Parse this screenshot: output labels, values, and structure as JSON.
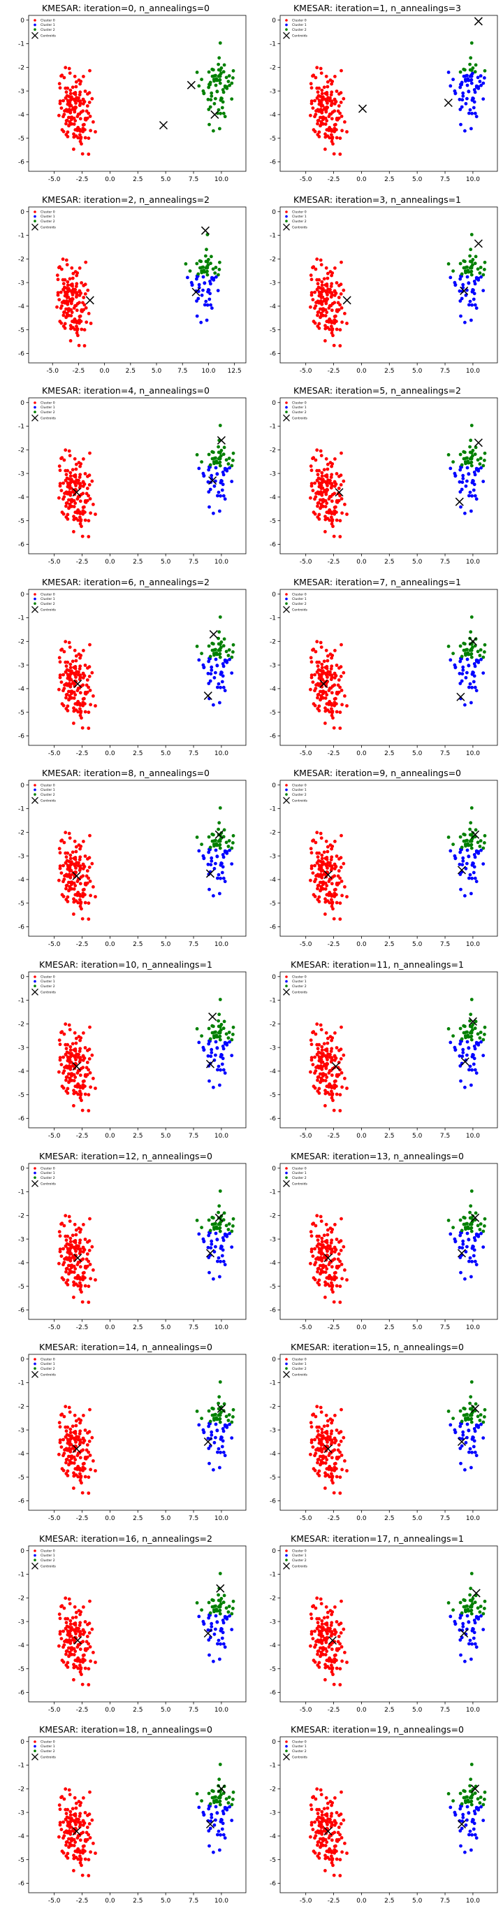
{
  "colors": {
    "cluster0": "#ff0000",
    "cluster1": "#0000ff",
    "cluster2": "#008000",
    "centroid": "#000000",
    "axis": "#000000"
  },
  "legend": [
    "Cluster 0",
    "Cluster 1",
    "Cluster 2",
    "Centroids"
  ],
  "chart_data": [
    {
      "type": "scatter",
      "title": "KMESAR: iteration=0, n_annealings=0",
      "xticks": [
        "-5.0",
        "-2.5",
        "0.0",
        "2.5",
        "5.0",
        "7.5",
        "10.0"
      ],
      "xtick_values": [
        -5,
        -2.5,
        0,
        2.5,
        5,
        7.5,
        10
      ],
      "xlim": [
        -7.3,
        12.2
      ],
      "yticks": [
        "0",
        "-1",
        "-2",
        "-3",
        "-4",
        "-5",
        "-6"
      ],
      "ylim": [
        -6.4,
        0.2
      ],
      "centroids": [
        [
          7.3,
          -2.75
        ],
        [
          9.4,
          -4.0
        ],
        [
          4.8,
          -4.45
        ]
      ],
      "assign_mode": "iter0"
    },
    {
      "type": "scatter",
      "title": "KMESAR: iteration=1, n_annealings=3",
      "xticks": [
        "-5.0",
        "-2.5",
        "0.0",
        "2.5",
        "5.0",
        "7.5",
        "10.0"
      ],
      "xtick_values": [
        -5,
        -2.5,
        0,
        2.5,
        5,
        7.5,
        10
      ],
      "xlim": [
        -7.3,
        12.2
      ],
      "yticks": [
        "0",
        "-1",
        "-2",
        "-3",
        "-4",
        "-5",
        "-6"
      ],
      "ylim": [
        -6.4,
        0.2
      ],
      "centroids": [
        [
          10.5,
          -0.05
        ],
        [
          0.1,
          -3.75
        ],
        [
          7.8,
          -3.5
        ]
      ],
      "assign_mode": "iter1"
    },
    {
      "type": "scatter",
      "title": "KMESAR: iteration=2, n_annealings=2",
      "xticks": [
        "-5.0",
        "-2.5",
        "0.0",
        "2.5",
        "5.0",
        "7.5",
        "10.0",
        "12.5"
      ],
      "xtick_values": [
        -5,
        -2.5,
        0,
        2.5,
        5,
        7.5,
        10,
        12.5
      ],
      "xlim": [
        -7.3,
        13.6
      ],
      "yticks": [
        "0",
        "-1",
        "-2",
        "-3",
        "-4",
        "-5",
        "-6"
      ],
      "ylim": [
        -6.4,
        0.2
      ],
      "centroids": [
        [
          9.7,
          -0.8
        ],
        [
          -1.4,
          -3.75
        ],
        [
          8.8,
          -3.4
        ]
      ],
      "assign_mode": "split"
    },
    {
      "type": "scatter",
      "title": "KMESAR: iteration=3, n_annealings=1",
      "xticks": [
        "-5.0",
        "-2.5",
        "0.0",
        "2.5",
        "5.0",
        "7.5",
        "10.0"
      ],
      "xtick_values": [
        -5,
        -2.5,
        0,
        2.5,
        5,
        7.5,
        10
      ],
      "xlim": [
        -7.3,
        12.2
      ],
      "yticks": [
        "0",
        "-1",
        "-2",
        "-3",
        "-4",
        "-5",
        "-6"
      ],
      "ylim": [
        -6.4,
        0.2
      ],
      "centroids": [
        [
          10.5,
          -1.35
        ],
        [
          -1.3,
          -3.75
        ],
        [
          9.2,
          -3.35
        ]
      ],
      "assign_mode": "split"
    },
    {
      "type": "scatter",
      "title": "KMESAR: iteration=4, n_annealings=0",
      "xticks": [
        "-5.0",
        "-2.5",
        "0.0",
        "2.5",
        "5.0",
        "7.5",
        "10.0"
      ],
      "xtick_values": [
        -5,
        -2.5,
        0,
        2.5,
        5,
        7.5,
        10
      ],
      "xlim": [
        -7.3,
        12.2
      ],
      "yticks": [
        "0",
        "-1",
        "-2",
        "-3",
        "-4",
        "-5",
        "-6"
      ],
      "ylim": [
        -6.4,
        0.2
      ],
      "centroids": [
        [
          10.0,
          -1.6
        ],
        [
          -3.0,
          -3.8
        ],
        [
          9.2,
          -3.3
        ]
      ],
      "assign_mode": "split"
    },
    {
      "type": "scatter",
      "title": "KMESAR: iteration=5, n_annealings=2",
      "xticks": [
        "-5.0",
        "-2.5",
        "0.0",
        "2.5",
        "5.0",
        "7.5",
        "10.0"
      ],
      "xtick_values": [
        -5,
        -2.5,
        0,
        2.5,
        5,
        7.5,
        10
      ],
      "xlim": [
        -7.3,
        12.2
      ],
      "yticks": [
        "0",
        "-1",
        "-2",
        "-3",
        "-4",
        "-5",
        "-6"
      ],
      "ylim": [
        -6.4,
        0.2
      ],
      "centroids": [
        [
          10.5,
          -1.7
        ],
        [
          -2.0,
          -3.8
        ],
        [
          8.8,
          -4.2
        ]
      ],
      "assign_mode": "split"
    },
    {
      "type": "scatter",
      "title": "KMESAR: iteration=6, n_annealings=2",
      "xticks": [
        "-5.0",
        "-2.5",
        "0.0",
        "2.5",
        "5.0",
        "7.5",
        "10.0"
      ],
      "xtick_values": [
        -5,
        -2.5,
        0,
        2.5,
        5,
        7.5,
        10
      ],
      "xlim": [
        -7.3,
        12.2
      ],
      "yticks": [
        "0",
        "-1",
        "-2",
        "-3",
        "-4",
        "-5",
        "-6"
      ],
      "ylim": [
        -6.4,
        0.2
      ],
      "centroids": [
        [
          9.3,
          -1.7
        ],
        [
          -2.9,
          -3.8
        ],
        [
          8.8,
          -4.3
        ]
      ],
      "assign_mode": "split"
    },
    {
      "type": "scatter",
      "title": "KMESAR: iteration=7, n_annealings=1",
      "xticks": [
        "-5.0",
        "-2.5",
        "0.0",
        "2.5",
        "5.0",
        "7.5",
        "10.0"
      ],
      "xtick_values": [
        -5,
        -2.5,
        0,
        2.5,
        5,
        7.5,
        10
      ],
      "xlim": [
        -7.3,
        12.2
      ],
      "yticks": [
        "0",
        "-1",
        "-2",
        "-3",
        "-4",
        "-5",
        "-6"
      ],
      "ylim": [
        -6.4,
        0.2
      ],
      "centroids": [
        [
          10.0,
          -2.0
        ],
        [
          -3.4,
          -3.8
        ],
        [
          8.9,
          -4.35
        ]
      ],
      "assign_mode": "split"
    },
    {
      "type": "scatter",
      "title": "KMESAR: iteration=8, n_annealings=0",
      "xticks": [
        "-5.0",
        "-2.5",
        "0.0",
        "2.5",
        "5.0",
        "7.5",
        "10.0"
      ],
      "xtick_values": [
        -5,
        -2.5,
        0,
        2.5,
        5,
        7.5,
        10
      ],
      "xlim": [
        -7.3,
        12.2
      ],
      "yticks": [
        "0",
        "-1",
        "-2",
        "-3",
        "-4",
        "-5",
        "-6"
      ],
      "ylim": [
        -6.4,
        0.2
      ],
      "centroids": [
        [
          9.8,
          -2.1
        ],
        [
          -3.0,
          -3.85
        ],
        [
          9.0,
          -3.75
        ]
      ],
      "assign_mode": "split"
    },
    {
      "type": "scatter",
      "title": "KMESAR: iteration=9, n_annealings=0",
      "xticks": [
        "-5.0",
        "-2.5",
        "0.0",
        "2.5",
        "5.0",
        "7.5",
        "10.0"
      ],
      "xtick_values": [
        -5,
        -2.5,
        0,
        2.5,
        5,
        7.5,
        10
      ],
      "xlim": [
        -7.3,
        12.2
      ],
      "yticks": [
        "0",
        "-1",
        "-2",
        "-3",
        "-4",
        "-5",
        "-6"
      ],
      "ylim": [
        -6.4,
        0.2
      ],
      "centroids": [
        [
          10.2,
          -2.1
        ],
        [
          -3.0,
          -3.8
        ],
        [
          9.0,
          -3.6
        ]
      ],
      "assign_mode": "split"
    },
    {
      "type": "scatter",
      "title": "KMESAR: iteration=10, n_annealings=1",
      "xticks": [
        "-5.0",
        "-2.5",
        "0.0",
        "2.5",
        "5.0",
        "7.5",
        "10.0"
      ],
      "xtick_values": [
        -5,
        -2.5,
        0,
        2.5,
        5,
        7.5,
        10
      ],
      "xlim": [
        -7.3,
        12.2
      ],
      "yticks": [
        "0",
        "-1",
        "-2",
        "-3",
        "-4",
        "-5",
        "-6"
      ],
      "ylim": [
        -6.4,
        0.2
      ],
      "centroids": [
        [
          9.2,
          -1.7
        ],
        [
          -3.0,
          -3.8
        ],
        [
          9.0,
          -3.7
        ]
      ],
      "assign_mode": "split"
    },
    {
      "type": "scatter",
      "title": "KMESAR: iteration=11, n_annealings=1",
      "xticks": [
        "-5.0",
        "-2.5",
        "0.0",
        "2.5",
        "5.0",
        "7.5",
        "10.0"
      ],
      "xtick_values": [
        -5,
        -2.5,
        0,
        2.5,
        5,
        7.5,
        10
      ],
      "xlim": [
        -7.3,
        12.2
      ],
      "yticks": [
        "0",
        "-1",
        "-2",
        "-3",
        "-4",
        "-5",
        "-6"
      ],
      "ylim": [
        -6.4,
        0.2
      ],
      "centroids": [
        [
          10.0,
          -1.9
        ],
        [
          -2.3,
          -3.8
        ],
        [
          9.3,
          -3.6
        ]
      ],
      "assign_mode": "split"
    },
    {
      "type": "scatter",
      "title": "KMESAR: iteration=12, n_annealings=0",
      "xticks": [
        "-5.0",
        "-2.5",
        "0.0",
        "2.5",
        "5.0",
        "7.5",
        "10.0"
      ],
      "xtick_values": [
        -5,
        -2.5,
        0,
        2.5,
        5,
        7.5,
        10
      ],
      "xlim": [
        -7.3,
        12.2
      ],
      "yticks": [
        "0",
        "-1",
        "-2",
        "-3",
        "-4",
        "-5",
        "-6"
      ],
      "ylim": [
        -6.4,
        0.2
      ],
      "centroids": [
        [
          9.8,
          -2.1
        ],
        [
          -2.9,
          -3.8
        ],
        [
          9.0,
          -3.6
        ]
      ],
      "assign_mode": "split"
    },
    {
      "type": "scatter",
      "title": "KMESAR: iteration=13, n_annealings=0",
      "xticks": [
        "-5.0",
        "-2.5",
        "0.0",
        "2.5",
        "5.0",
        "7.5",
        "10.0"
      ],
      "xtick_values": [
        -5,
        -2.5,
        0,
        2.5,
        5,
        7.5,
        10
      ],
      "xlim": [
        -7.3,
        12.2
      ],
      "yticks": [
        "0",
        "-1",
        "-2",
        "-3",
        "-4",
        "-5",
        "-6"
      ],
      "ylim": [
        -6.4,
        0.2
      ],
      "centroids": [
        [
          10.2,
          -2.1
        ],
        [
          -3.0,
          -3.8
        ],
        [
          9.0,
          -3.6
        ]
      ],
      "assign_mode": "split"
    },
    {
      "type": "scatter",
      "title": "KMESAR: iteration=14, n_annealings=0",
      "xticks": [
        "-5.0",
        "-2.5",
        "0.0",
        "2.5",
        "5.0",
        "7.5",
        "10.0"
      ],
      "xtick_values": [
        -5,
        -2.5,
        0,
        2.5,
        5,
        7.5,
        10
      ],
      "xlim": [
        -7.3,
        12.2
      ],
      "yticks": [
        "0",
        "-1",
        "-2",
        "-3",
        "-4",
        "-5",
        "-6"
      ],
      "ylim": [
        -6.4,
        0.2
      ],
      "centroids": [
        [
          10.0,
          -2.1
        ],
        [
          -3.0,
          -3.8
        ],
        [
          8.8,
          -3.5
        ]
      ],
      "assign_mode": "split"
    },
    {
      "type": "scatter",
      "title": "KMESAR: iteration=15, n_annealings=0",
      "xticks": [
        "-5.0",
        "-2.5",
        "0.0",
        "2.5",
        "5.0",
        "7.5",
        "10.0"
      ],
      "xtick_values": [
        -5,
        -2.5,
        0,
        2.5,
        5,
        7.5,
        10
      ],
      "xlim": [
        -7.3,
        12.2
      ],
      "yticks": [
        "0",
        "-1",
        "-2",
        "-3",
        "-4",
        "-5",
        "-6"
      ],
      "ylim": [
        -6.4,
        0.2
      ],
      "centroids": [
        [
          10.2,
          -2.1
        ],
        [
          -3.0,
          -3.8
        ],
        [
          9.0,
          -3.5
        ]
      ],
      "assign_mode": "split"
    },
    {
      "type": "scatter",
      "title": "KMESAR: iteration=16, n_annealings=2",
      "xticks": [
        "-5.0",
        "-2.5",
        "0.0",
        "2.5",
        "5.0",
        "7.5",
        "10.0"
      ],
      "xtick_values": [
        -5,
        -2.5,
        0,
        2.5,
        5,
        7.5,
        10
      ],
      "xlim": [
        -7.3,
        12.2
      ],
      "yticks": [
        "0",
        "-1",
        "-2",
        "-3",
        "-4",
        "-5",
        "-6"
      ],
      "ylim": [
        -6.4,
        0.2
      ],
      "centroids": [
        [
          9.9,
          -1.6
        ],
        [
          -2.9,
          -3.8
        ],
        [
          8.8,
          -3.5
        ]
      ],
      "assign_mode": "split"
    },
    {
      "type": "scatter",
      "title": "KMESAR: iteration=17, n_annealings=1",
      "xticks": [
        "-5.0",
        "-2.5",
        "0.0",
        "2.5",
        "5.0",
        "7.5",
        "10.0"
      ],
      "xtick_values": [
        -5,
        -2.5,
        0,
        2.5,
        5,
        7.5,
        10
      ],
      "xlim": [
        -7.3,
        12.2
      ],
      "yticks": [
        "0",
        "-1",
        "-2",
        "-3",
        "-4",
        "-5",
        "-6"
      ],
      "ylim": [
        -6.4,
        0.2
      ],
      "centroids": [
        [
          10.3,
          -1.8
        ],
        [
          -2.6,
          -3.8
        ],
        [
          9.2,
          -3.5
        ]
      ],
      "assign_mode": "split"
    },
    {
      "type": "scatter",
      "title": "KMESAR: iteration=18, n_annealings=0",
      "xticks": [
        "-5.0",
        "-2.5",
        "0.0",
        "2.5",
        "5.0",
        "7.5",
        "10.0"
      ],
      "xtick_values": [
        -5,
        -2.5,
        0,
        2.5,
        5,
        7.5,
        10
      ],
      "xlim": [
        -7.3,
        12.2
      ],
      "yticks": [
        "0",
        "-1",
        "-2",
        "-3",
        "-4",
        "-5",
        "-6"
      ],
      "ylim": [
        -6.4,
        0.2
      ],
      "centroids": [
        [
          10.0,
          -2.0
        ],
        [
          -3.0,
          -3.8
        ],
        [
          9.0,
          -3.5
        ]
      ],
      "assign_mode": "split"
    },
    {
      "type": "scatter",
      "title": "KMESAR: iteration=19, n_annealings=0",
      "xticks": [
        "-5.0",
        "-2.5",
        "0.0",
        "2.5",
        "5.0",
        "7.5",
        "10.0"
      ],
      "xtick_values": [
        -5,
        -2.5,
        0,
        2.5,
        5,
        7.5,
        10
      ],
      "xlim": [
        -7.3,
        12.2
      ],
      "yticks": [
        "0",
        "-1",
        "-2",
        "-3",
        "-4",
        "-5",
        "-6"
      ],
      "ylim": [
        -6.4,
        0.2
      ],
      "centroids": [
        [
          10.2,
          -2.0
        ],
        [
          -3.0,
          -3.8
        ],
        [
          9.0,
          -3.5
        ]
      ],
      "assign_mode": "split"
    }
  ]
}
